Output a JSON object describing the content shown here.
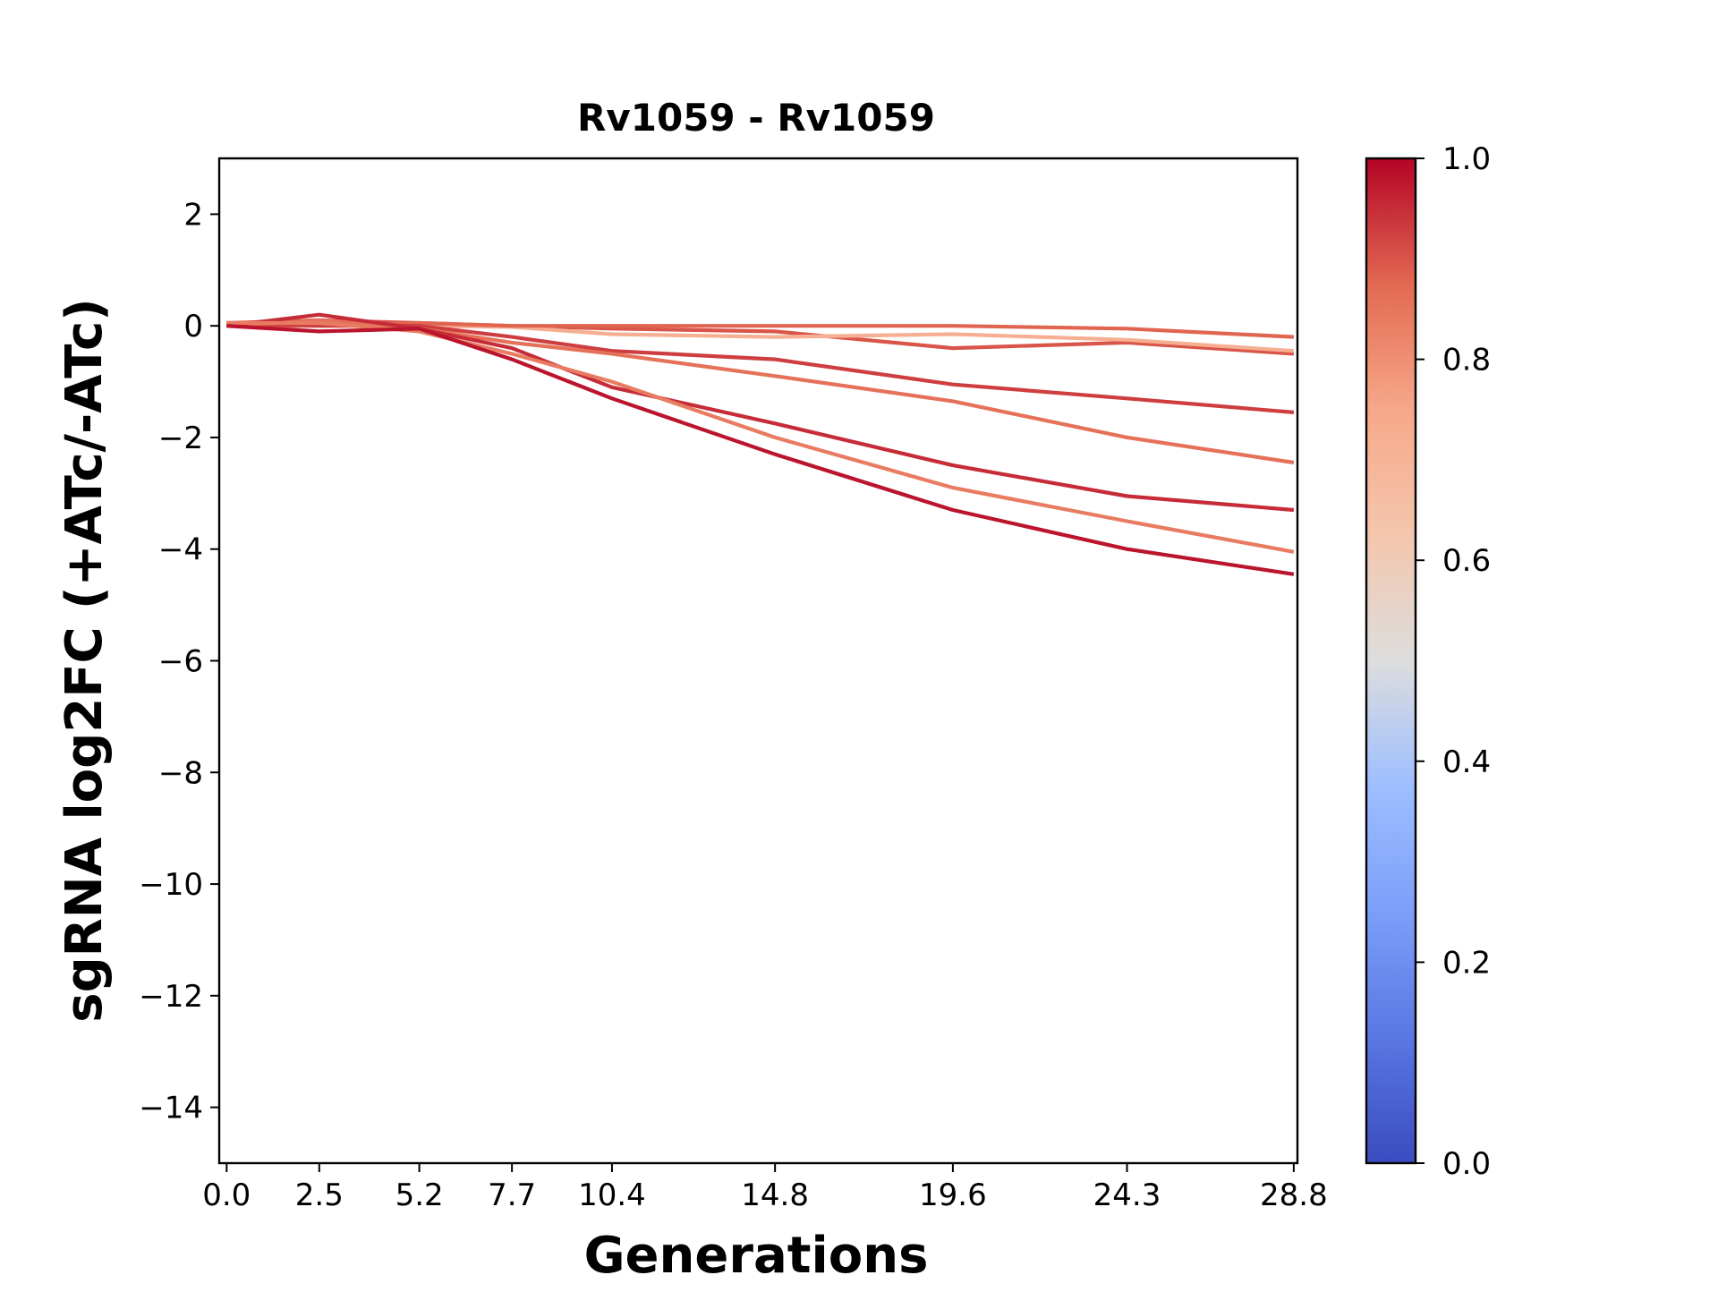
{
  "chart_data": {
    "type": "line",
    "title": "Rv1059 - Rv1059",
    "xlabel": "Generations",
    "ylabel": "sgRNA log2FC (+ATc/-ATc)",
    "x": [
      0.0,
      2.5,
      5.2,
      7.7,
      10.4,
      14.8,
      19.6,
      24.3,
      28.8
    ],
    "x_tick_labels": [
      "0.0",
      "2.5",
      "5.2",
      "7.7",
      "10.4",
      "14.8",
      "19.6",
      "24.3",
      "28.8"
    ],
    "xlim": [
      -0.2,
      28.9
    ],
    "ylim": [
      -15,
      3
    ],
    "y_ticks": [
      2,
      0,
      -2,
      -4,
      -6,
      -8,
      -10,
      -12,
      -14
    ],
    "y_tick_labels": [
      "2",
      "0",
      "−2",
      "−4",
      "−6",
      "−8",
      "−10",
      "−12",
      "−14"
    ],
    "grid": false,
    "colorbar": {
      "cmap": "coolwarm",
      "range": [
        0.0,
        1.0
      ],
      "ticks": [
        0.0,
        0.2,
        0.4,
        0.6,
        0.8,
        1.0
      ],
      "tick_labels": [
        "0.0",
        "0.2",
        "0.4",
        "0.6",
        "0.8",
        "1.0"
      ]
    },
    "series": [
      {
        "values": [
          0.05,
          0.1,
          0.05,
          0.0,
          -0.05,
          -0.1,
          -0.4,
          -0.3,
          -0.5
        ],
        "color_value": 0.9
      },
      {
        "values": [
          0.0,
          0.05,
          0.0,
          -0.02,
          -0.15,
          -0.2,
          -0.15,
          -0.25,
          -0.45
        ],
        "color_value": 0.72
      },
      {
        "values": [
          0.0,
          0.0,
          0.05,
          0.0,
          0.0,
          0.0,
          0.0,
          -0.05,
          -0.2
        ],
        "color_value": 0.88
      },
      {
        "values": [
          0.05,
          0.0,
          0.0,
          -0.2,
          -0.45,
          -0.6,
          -1.05,
          -1.3,
          -1.55
        ],
        "color_value": 0.93
      },
      {
        "values": [
          0.0,
          0.1,
          -0.05,
          -0.3,
          -0.5,
          -0.9,
          -1.35,
          -2.0,
          -2.45
        ],
        "color_value": 0.86
      },
      {
        "values": [
          0.0,
          0.2,
          -0.05,
          -0.4,
          -1.1,
          -1.75,
          -2.5,
          -3.05,
          -3.3
        ],
        "color_value": 0.95
      },
      {
        "values": [
          0.05,
          0.05,
          -0.1,
          -0.5,
          -1.0,
          -2.0,
          -2.9,
          -3.5,
          -4.05
        ],
        "color_value": 0.84
      },
      {
        "values": [
          0.0,
          -0.1,
          -0.05,
          -0.6,
          -1.3,
          -2.3,
          -3.3,
          -4.0,
          -4.45
        ],
        "color_value": 0.98
      }
    ]
  }
}
